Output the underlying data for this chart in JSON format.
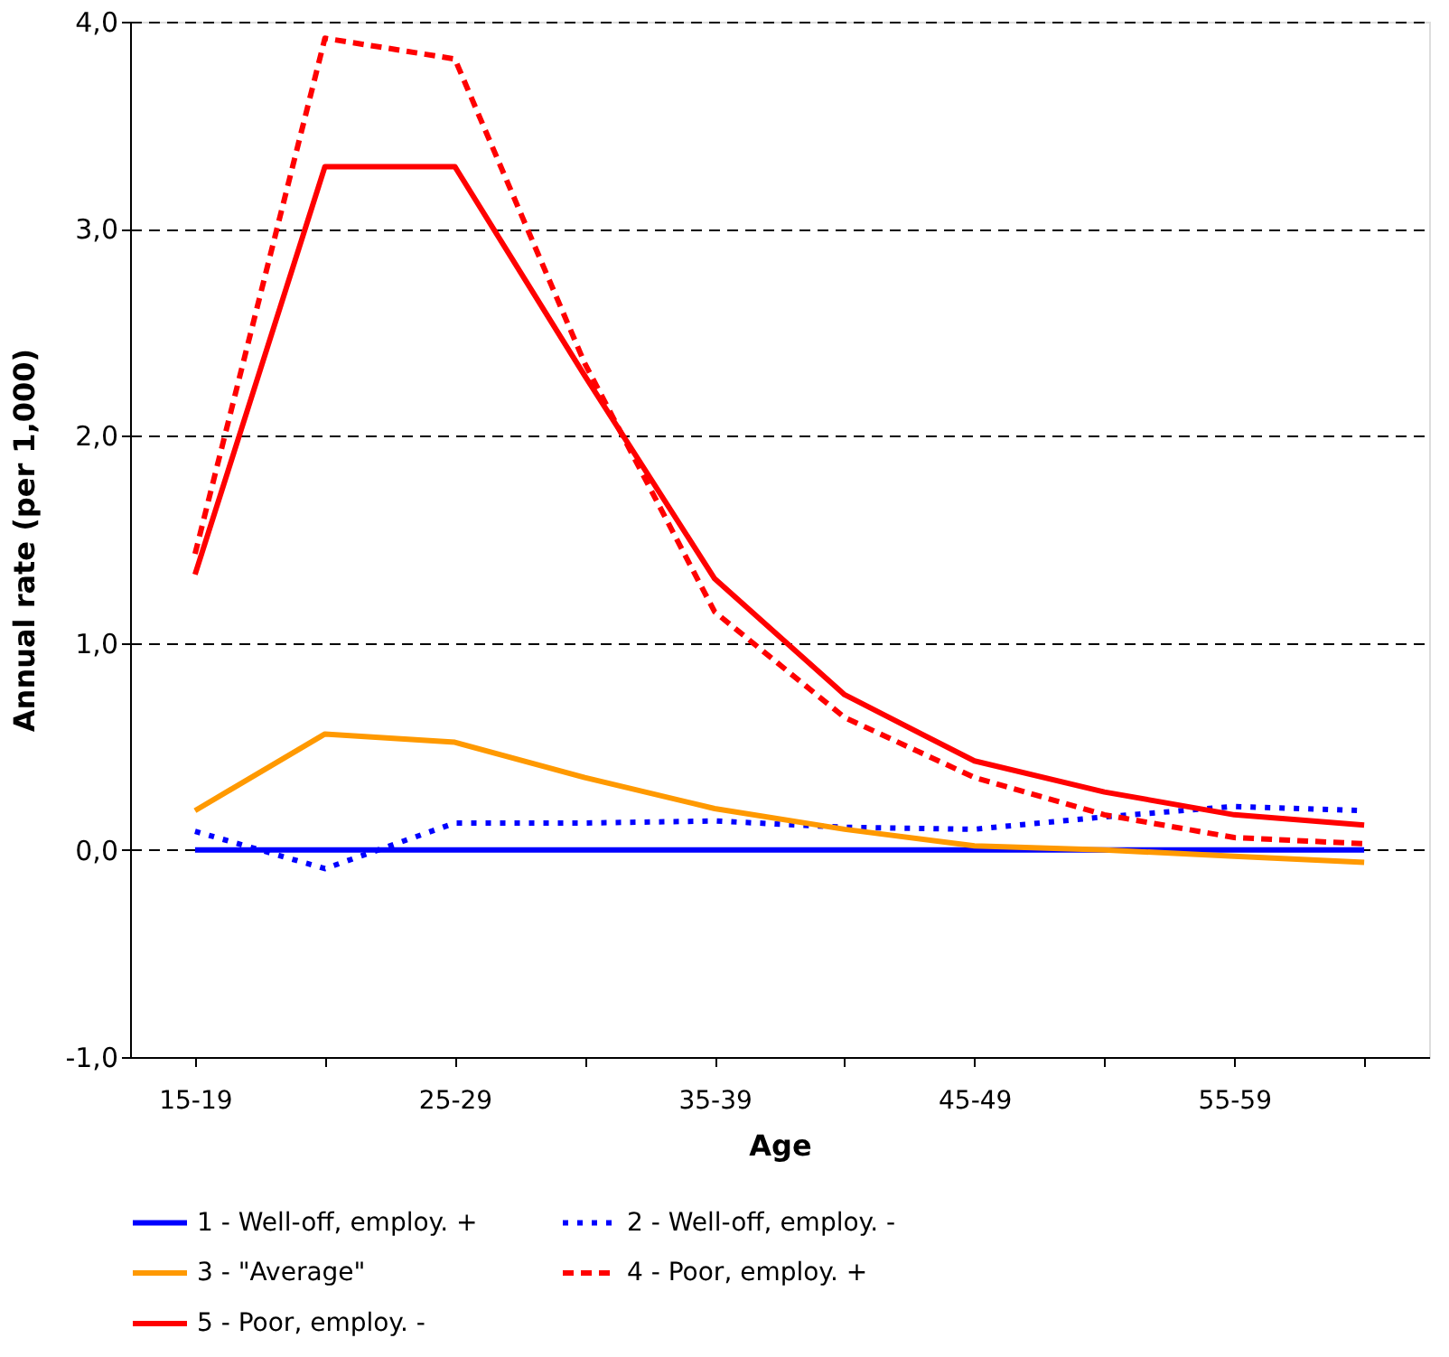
{
  "chart_data": {
    "type": "line",
    "xlabel": "Age",
    "ylabel": "Annual rate (per 1,000)",
    "categories": [
      "15-19",
      null,
      "25-29",
      null,
      "35-39",
      null,
      "45-49",
      null,
      "55-59",
      null
    ],
    "series": [
      {
        "name": "1 - Well-off, employ. +",
        "color": "#0000ff",
        "line_style": "solid",
        "values": [
          0,
          0,
          0,
          0,
          0,
          0,
          0,
          0,
          0,
          0
        ]
      },
      {
        "name": "2 - Well-off, employ. -",
        "color": "#0000ff",
        "line_style": "dotted",
        "values": [
          0.09,
          -0.09,
          0.13,
          0.13,
          0.14,
          0.11,
          0.1,
          0.16,
          0.21,
          0.19
        ]
      },
      {
        "name": "3 - \"Average\"",
        "color": "#ff9900",
        "line_style": "solid",
        "values": [
          0.19,
          0.56,
          0.52,
          0.35,
          0.2,
          0.1,
          0.02,
          0.0,
          -0.03,
          -0.06
        ]
      },
      {
        "name": "4 - Poor, employ. +",
        "color": "#ff0000",
        "line_style": "dashed",
        "values": [
          1.43,
          3.92,
          3.82,
          2.35,
          1.15,
          0.64,
          0.35,
          0.17,
          0.06,
          0.03
        ]
      },
      {
        "name": "5 - Poor, employ. -",
        "color": "#ff0000",
        "line_style": "solid",
        "values": [
          1.33,
          3.3,
          3.3,
          2.29,
          1.31,
          0.75,
          0.43,
          0.28,
          0.17,
          0.12
        ]
      }
    ],
    "ylim": [
      -1,
      4
    ],
    "yticks": [
      {
        "value": -1,
        "label": "-1,0"
      },
      {
        "value": 0,
        "label": "0,0"
      },
      {
        "value": 1,
        "label": "1,0"
      },
      {
        "value": 2,
        "label": "2,0"
      },
      {
        "value": 3,
        "label": "3,0"
      },
      {
        "value": 4,
        "label": "4,0"
      }
    ],
    "grid": "y",
    "legend": "bottom",
    "marker": "none"
  }
}
